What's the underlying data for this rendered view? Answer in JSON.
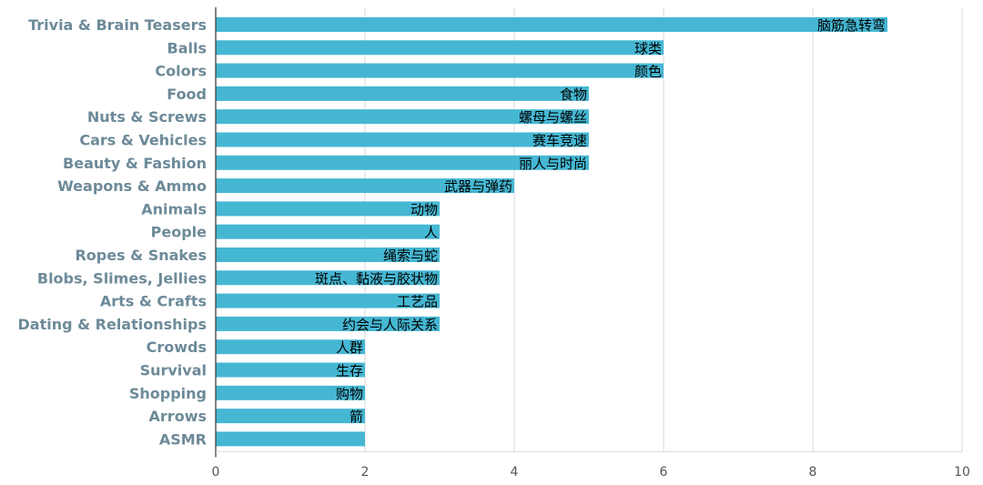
{
  "chart_data": {
    "type": "bar",
    "orientation": "horizontal",
    "categories": [
      "Trivia & Brain Teasers",
      "Balls",
      "Colors",
      "Food",
      "Nuts & Screws",
      "Cars & Vehicles",
      "Beauty & Fashion",
      "Weapons & Ammo",
      "Animals",
      "People",
      "Ropes & Snakes",
      "Blobs, Slimes, Jellies",
      "Arts & Crafts",
      "Dating & Relationships",
      "Crowds",
      "Survival",
      "Shopping",
      "Arrows",
      "ASMR"
    ],
    "values": [
      9,
      6,
      6,
      5,
      5,
      5,
      5,
      4,
      3,
      3,
      3,
      3,
      3,
      3,
      2,
      2,
      2,
      2,
      2
    ],
    "data_labels": [
      "脑筋急转弯",
      "球类",
      "颜色",
      "食物",
      "螺母与螺丝",
      "赛车竞速",
      "丽人与时尚",
      "武器与弹药",
      "动物",
      "人",
      "绳索与蛇",
      "斑点、黏液与胶状物",
      "工艺品",
      "约会与人际关系",
      "人群",
      "生存",
      "购物",
      "箭",
      ""
    ],
    "xlim": [
      0,
      10
    ],
    "xticks": [
      0,
      2,
      4,
      6,
      8,
      10
    ],
    "title": "",
    "xlabel": "",
    "ylabel": "",
    "grid": "vertical",
    "legend": "none",
    "bar_color": "#45b7d3",
    "category_label_color": "#6d8a99"
  }
}
